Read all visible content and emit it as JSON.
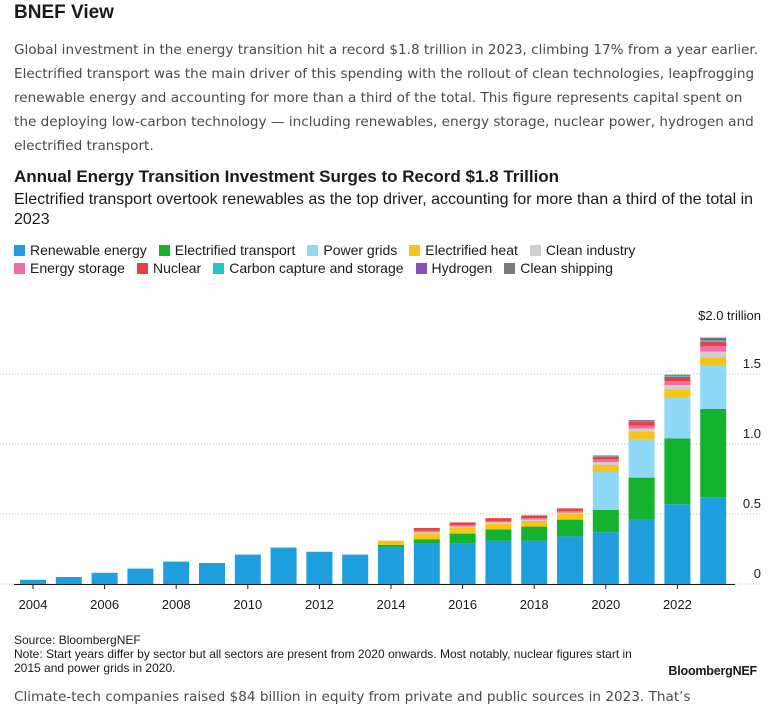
{
  "section_title": "BNEF View",
  "intro": "Global investment in the energy transition hit a record $1.8 trillion in 2023, climbing 17% from a year earlier. Electrified transport was the main driver of this spending with the rollout of clean technologies, leapfrogging renewable energy and accounting for more than a third of the total. This figure represents capital spent on the deploying low-carbon technology — including renewables, energy storage, nuclear power, hydrogen and electrified transport.",
  "source": "Source: BloombergNEF",
  "note": "Note: Start years differ by sector but all sectors are present from 2020 onwards. Most notably, nuclear figures start in 2015 and power grids in 2020.",
  "brand": "BloombergNEF",
  "outro": "Climate-tech companies raised $84 billion in equity from private and public sources in 2023. That’s",
  "chart_data": {
    "type": "bar",
    "stacked": true,
    "title": "Annual Energy Transition Investment Surges to Record $1.8 Trillion",
    "subtitle": "Electrified transport overtook renewables as the top driver, accounting for more than a third of the total in 2023",
    "y_unit": "$ trillion",
    "ylim": [
      0,
      2.0
    ],
    "yticks": [
      0,
      0.5,
      1.0,
      1.5,
      2.0
    ],
    "ytick_labels": [
      "0",
      "0.5",
      "1.0",
      "1.5",
      "$2.0 trillion"
    ],
    "x_tick_labels": [
      "2004",
      "2006",
      "2008",
      "2010",
      "2012",
      "2014",
      "2016",
      "2018",
      "2020",
      "2022"
    ],
    "categories": [
      "2004",
      "2005",
      "2006",
      "2007",
      "2008",
      "2009",
      "2010",
      "2011",
      "2012",
      "2013",
      "2014",
      "2015",
      "2016",
      "2017",
      "2018",
      "2019",
      "2020",
      "2021",
      "2022",
      "2023"
    ],
    "series": [
      {
        "name": "Renewable energy",
        "color": "#1f9fde",
        "values": [
          0.03,
          0.05,
          0.08,
          0.11,
          0.16,
          0.15,
          0.21,
          0.26,
          0.23,
          0.21,
          0.26,
          0.29,
          0.29,
          0.31,
          0.31,
          0.34,
          0.37,
          0.46,
          0.57,
          0.62
        ]
      },
      {
        "name": "Electrified transport",
        "color": "#13b22f",
        "values": [
          0,
          0,
          0,
          0,
          0,
          0,
          0,
          0,
          0,
          0,
          0.02,
          0.03,
          0.07,
          0.08,
          0.1,
          0.12,
          0.16,
          0.3,
          0.47,
          0.63
        ]
      },
      {
        "name": "Power grids",
        "color": "#8fd8f8",
        "values": [
          0,
          0,
          0,
          0,
          0,
          0,
          0,
          0,
          0,
          0,
          0,
          0,
          0,
          0,
          0,
          0,
          0.27,
          0.27,
          0.29,
          0.31
        ]
      },
      {
        "name": "Electrified heat",
        "color": "#f5c518",
        "values": [
          0,
          0,
          0,
          0,
          0,
          0,
          0,
          0,
          0,
          0,
          0.03,
          0.04,
          0.04,
          0.04,
          0.04,
          0.04,
          0.05,
          0.06,
          0.06,
          0.06
        ]
      },
      {
        "name": "Clean industry",
        "color": "#cfcfcf",
        "values": [
          0,
          0,
          0,
          0,
          0,
          0,
          0,
          0,
          0,
          0,
          0,
          0.01,
          0.01,
          0.01,
          0.01,
          0.01,
          0.02,
          0.02,
          0.03,
          0.04
        ]
      },
      {
        "name": "Energy storage",
        "color": "#ee6fa4",
        "values": [
          0,
          0,
          0,
          0,
          0,
          0,
          0,
          0,
          0,
          0,
          0,
          0.01,
          0.01,
          0.01,
          0.01,
          0.01,
          0.02,
          0.02,
          0.03,
          0.04
        ]
      },
      {
        "name": "Nuclear",
        "color": "#e8423c",
        "values": [
          0,
          0,
          0,
          0,
          0,
          0,
          0,
          0,
          0,
          0,
          0,
          0.02,
          0.02,
          0.02,
          0.02,
          0.02,
          0.02,
          0.03,
          0.03,
          0.03
        ]
      },
      {
        "name": "Carbon capture and storage",
        "color": "#1fc9c1",
        "values": [
          0,
          0,
          0,
          0,
          0,
          0,
          0,
          0,
          0,
          0,
          0,
          0,
          0,
          0,
          0,
          0,
          0.003,
          0.004,
          0.005,
          0.01
        ]
      },
      {
        "name": "Hydrogen",
        "color": "#8a52b8",
        "values": [
          0,
          0,
          0,
          0,
          0,
          0,
          0,
          0,
          0,
          0,
          0,
          0,
          0,
          0,
          0,
          0,
          0.003,
          0.004,
          0.006,
          0.01
        ]
      },
      {
        "name": "Clean shipping",
        "color": "#7a7a7a",
        "values": [
          0,
          0,
          0,
          0,
          0,
          0,
          0,
          0,
          0,
          0,
          0,
          0,
          0,
          0,
          0,
          0,
          0.003,
          0.003,
          0.004,
          0.01
        ]
      }
    ],
    "legend_rows": [
      [
        "Renewable energy",
        "Electrified transport",
        "Power grids",
        "Electrified heat",
        "Clean industry"
      ],
      [
        "Energy storage",
        "Nuclear",
        "Carbon capture and storage",
        "Hydrogen",
        "Clean shipping"
      ]
    ]
  }
}
